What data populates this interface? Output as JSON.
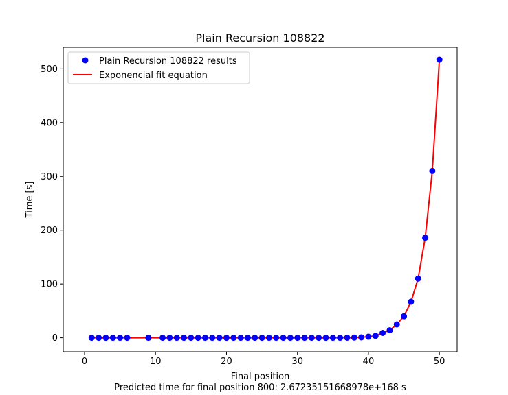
{
  "chart_data": {
    "type": "scatter",
    "title": "Plain Recursion 108822",
    "xlabel": "Final position",
    "ylabel": "Time [s]",
    "footer_note": "Predicted time for final position 800: 2.67235151668978e+168 s",
    "xlim": [
      -3,
      52.5
    ],
    "ylim": [
      -26,
      540
    ],
    "xticks": [
      0,
      10,
      20,
      30,
      40,
      50
    ],
    "yticks": [
      0,
      100,
      200,
      300,
      400,
      500
    ],
    "grid": false,
    "legend_placement": "upper-left",
    "series": [
      {
        "name": "Plain Recursion 108822 results",
        "kind": "points",
        "color": "#0000ff",
        "x": [
          1,
          2,
          3,
          4,
          5,
          6,
          9,
          11,
          12,
          13,
          14,
          15,
          16,
          17,
          18,
          19,
          20,
          21,
          22,
          23,
          24,
          25,
          26,
          27,
          28,
          29,
          30,
          31,
          32,
          33,
          34,
          35,
          36,
          37,
          38,
          39,
          40,
          41,
          42,
          43,
          44,
          45,
          46,
          47,
          48,
          49,
          50
        ],
        "y": [
          0,
          0,
          0,
          0,
          0,
          0,
          0,
          0,
          0,
          0,
          0,
          0,
          0,
          0,
          0,
          0,
          0,
          0,
          0,
          0,
          0,
          0,
          0,
          0,
          0,
          0,
          0,
          0,
          0,
          0,
          0,
          0,
          0,
          0.2,
          0.4,
          0.8,
          2,
          3.5,
          9,
          14,
          25,
          40,
          67,
          110,
          186,
          310,
          517
        ]
      },
      {
        "name": "Exponencial fit equation",
        "kind": "line",
        "color": "#ff0000",
        "x": [
          1,
          2,
          3,
          4,
          5,
          6,
          9,
          11,
          12,
          13,
          14,
          15,
          16,
          17,
          18,
          19,
          20,
          21,
          22,
          23,
          24,
          25,
          26,
          27,
          28,
          29,
          30,
          31,
          32,
          33,
          34,
          35,
          36,
          37,
          38,
          39,
          40,
          41,
          42,
          43,
          44,
          45,
          46,
          47,
          48,
          49,
          50
        ],
        "y": [
          0,
          0,
          0,
          0,
          0,
          0,
          0,
          0,
          0,
          0,
          0,
          0,
          0,
          0,
          0,
          0,
          0,
          0,
          0,
          0,
          0,
          0,
          0,
          0,
          0,
          0,
          0,
          0,
          0,
          0,
          0,
          0,
          0.1,
          0.3,
          0.5,
          1,
          2,
          3.6,
          9,
          14,
          25,
          40,
          67,
          110,
          186,
          310,
          517
        ]
      }
    ]
  }
}
